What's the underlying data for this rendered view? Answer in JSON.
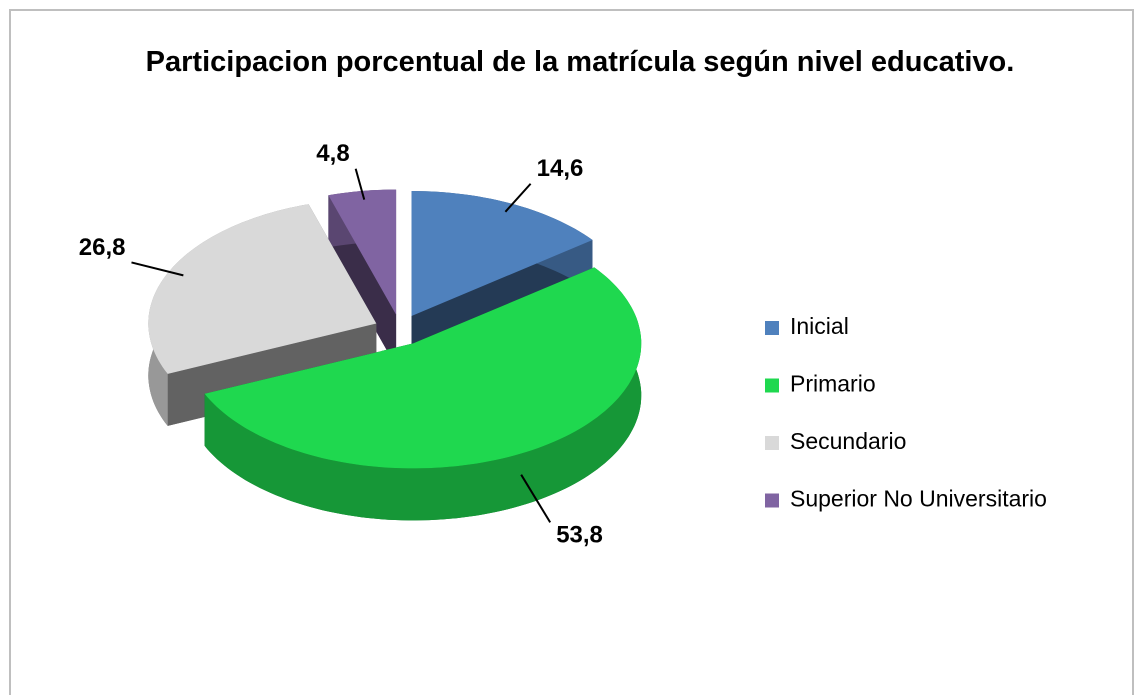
{
  "chart_data": {
    "type": "pie3d",
    "title": "Participacion porcentual  de la matrícula según nivel educativo.",
    "categories": [
      "Inicial",
      "Primario",
      "Secundario",
      "Superior No Universitario"
    ],
    "values": [
      14.6,
      53.8,
      26.8,
      4.8
    ],
    "value_labels": [
      "14,6",
      "53,8",
      "26,8",
      "4,8"
    ],
    "colors": [
      "#4f81bd",
      "#1fd84f",
      "#d9d9d9",
      "#8064a2"
    ],
    "legend": "right"
  }
}
